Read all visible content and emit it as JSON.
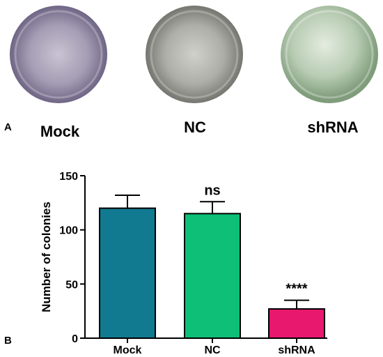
{
  "figure": {
    "panel_a": "A",
    "panel_b": "B",
    "plates": [
      {
        "label": "Mock",
        "tint": "#7d6f9c"
      },
      {
        "label": "NC",
        "tint": "#8a8a8a"
      },
      {
        "label": "shRNA",
        "tint": "#8fae8c"
      }
    ]
  },
  "chart_data": {
    "type": "bar",
    "categories": [
      "Mock",
      "NC",
      "shRNA"
    ],
    "values": [
      120,
      115,
      27
    ],
    "errors": [
      12,
      11,
      8
    ],
    "colors": [
      "#117a91",
      "#0dbf77",
      "#e8186e"
    ],
    "annotations": [
      "",
      "ns",
      "****"
    ],
    "ylabel": "Number of colonies",
    "xlabel": "",
    "ylim": [
      0,
      150
    ],
    "yticks": [
      0,
      50,
      100,
      150
    ],
    "grid": false
  }
}
